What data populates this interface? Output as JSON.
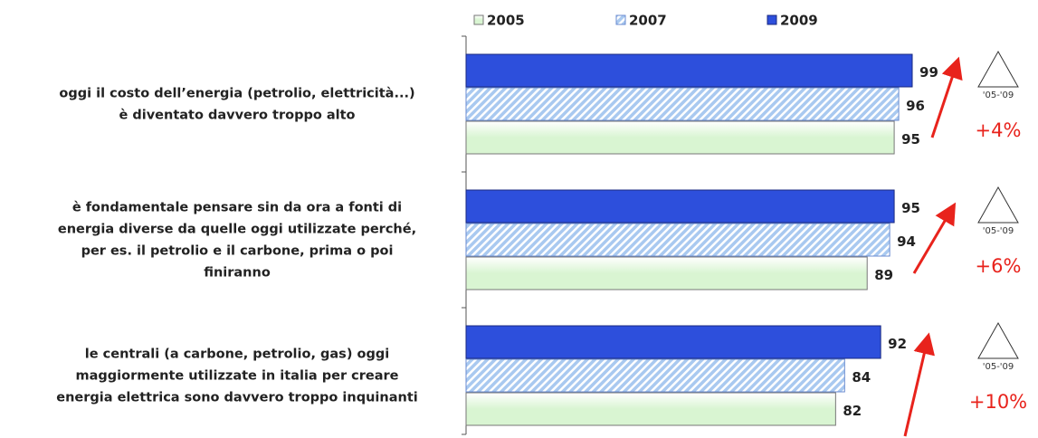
{
  "chart_data": {
    "type": "hbar",
    "categories": [
      [
        "oggi il costo dell’energia (petrolio, elettricità...)",
        "è diventato davvero troppo alto"
      ],
      [
        "è fondamentale pensare sin da ora a fonti di",
        "energia diverse da quelle oggi utilizzate perché,",
        "per es. il petrolio e il carbone, prima o poi",
        "finiranno"
      ],
      [
        "le centrali (a carbone, petrolio, gas) oggi",
        "maggiormente utilizzate in italia per creare",
        "energia elettrica sono davvero troppo inquinanti"
      ]
    ],
    "series": [
      {
        "name": "2005",
        "color": "#d9f5d2",
        "values": [
          95,
          89,
          82
        ]
      },
      {
        "name": "2007",
        "color": "#a9c9f0",
        "values": [
          96,
          94,
          84
        ]
      },
      {
        "name": "2009",
        "color": "#2d4fdc",
        "values": [
          99,
          95,
          92
        ]
      }
    ],
    "xlim": [
      0,
      100
    ],
    "annotations": [
      {
        "period": "'05-'09",
        "change": "+4%"
      },
      {
        "period": "'05-'09",
        "change": "+6%"
      },
      {
        "period": "'05-'09",
        "change": "+10%"
      }
    ]
  }
}
